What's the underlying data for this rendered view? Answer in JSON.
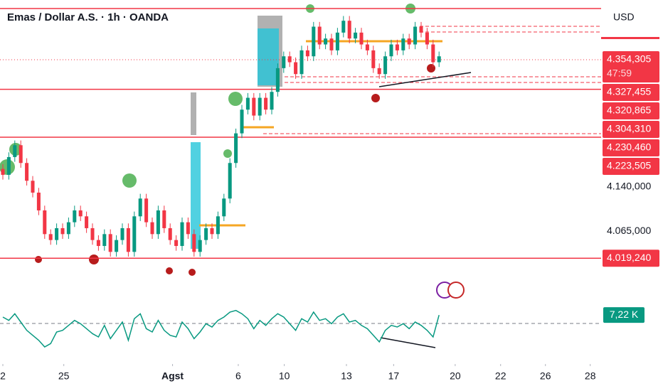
{
  "chart_data": {
    "type": "candlestick",
    "title": "Emas / Dollar A.S. · 1h · OANDA",
    "currency": "USD",
    "up_color": "#089981",
    "down_color": "#f23645",
    "ylim": [
      3.98,
      4.455
    ],
    "xlim": [
      0,
      100
    ],
    "xticks": [
      {
        "value": 0,
        "label": "2"
      },
      {
        "value": 10.2,
        "label": "25"
      },
      {
        "value": 28.4,
        "label": "Agst"
      },
      {
        "value": 39.4,
        "label": "6"
      },
      {
        "value": 47.1,
        "label": "10"
      },
      {
        "value": 57.5,
        "label": "13"
      },
      {
        "value": 65.4,
        "label": "17"
      },
      {
        "value": 75.7,
        "label": "20"
      },
      {
        "value": 83.3,
        "label": "22"
      },
      {
        "value": 90.8,
        "label": "26"
      },
      {
        "value": 98.3,
        "label": "28"
      }
    ],
    "open": [
      4.17,
      4.16,
      4.19,
      4.21,
      4.18,
      4.15,
      4.13,
      4.1,
      4.06,
      4.05,
      4.07,
      4.06,
      4.08,
      4.1,
      4.09,
      4.07,
      4.05,
      4.04,
      4.06,
      4.03,
      4.05,
      4.07,
      4.03,
      4.09,
      4.12,
      4.08,
      4.06,
      4.1,
      4.07,
      4.05,
      4.04,
      4.08,
      4.06,
      4.03,
      4.05,
      4.07,
      4.06,
      4.09,
      4.12,
      4.18,
      4.23,
      4.27,
      4.29,
      4.26,
      4.29,
      4.27,
      4.3,
      4.34,
      4.36,
      4.35,
      4.33,
      4.37,
      4.36,
      4.41,
      4.38,
      4.39,
      4.37,
      4.4,
      4.42,
      4.39,
      4.4,
      4.38,
      4.37,
      4.34,
      4.33,
      4.36,
      4.38,
      4.37,
      4.39,
      4.38,
      4.41,
      4.4,
      4.38,
      4.35
    ],
    "high": [
      4.178,
      4.198,
      4.218,
      4.218,
      4.188,
      4.158,
      4.138,
      4.108,
      4.068,
      4.078,
      4.078,
      4.088,
      4.108,
      4.108,
      4.098,
      4.078,
      4.058,
      4.068,
      4.068,
      4.058,
      4.078,
      4.078,
      4.098,
      4.128,
      4.128,
      4.088,
      4.108,
      4.108,
      4.078,
      4.058,
      4.088,
      4.088,
      4.068,
      4.058,
      4.078,
      4.078,
      4.098,
      4.128,
      4.188,
      4.238,
      4.278,
      4.298,
      4.298,
      4.298,
      4.298,
      4.308,
      4.348,
      4.368,
      4.368,
      4.358,
      4.378,
      4.378,
      4.418,
      4.418,
      4.398,
      4.398,
      4.408,
      4.428,
      4.428,
      4.408,
      4.408,
      4.388,
      4.378,
      4.348,
      4.368,
      4.388,
      4.388,
      4.398,
      4.398,
      4.418,
      4.418,
      4.408,
      4.388,
      4.368
    ],
    "low": [
      4.152,
      4.152,
      4.182,
      4.172,
      4.142,
      4.122,
      4.092,
      4.052,
      4.042,
      4.042,
      4.052,
      4.052,
      4.072,
      4.082,
      4.062,
      4.042,
      4.032,
      4.032,
      4.022,
      4.022,
      4.042,
      4.022,
      4.022,
      4.082,
      4.072,
      4.052,
      4.052,
      4.062,
      4.042,
      4.032,
      4.032,
      4.052,
      4.022,
      4.022,
      4.042,
      4.052,
      4.052,
      4.082,
      4.112,
      4.172,
      4.222,
      4.262,
      4.252,
      4.252,
      4.262,
      4.262,
      4.292,
      4.332,
      4.342,
      4.322,
      4.322,
      4.352,
      4.352,
      4.372,
      4.372,
      4.362,
      4.362,
      4.392,
      4.382,
      4.382,
      4.372,
      4.362,
      4.332,
      4.322,
      4.322,
      4.352,
      4.362,
      4.362,
      4.372,
      4.372,
      4.392,
      4.372,
      4.342,
      4.342
    ],
    "close": [
      4.16,
      4.19,
      4.21,
      4.18,
      4.15,
      4.13,
      4.1,
      4.06,
      4.05,
      4.07,
      4.06,
      4.08,
      4.1,
      4.09,
      4.07,
      4.05,
      4.04,
      4.06,
      4.03,
      4.05,
      4.07,
      4.03,
      4.09,
      4.12,
      4.08,
      4.06,
      4.1,
      4.07,
      4.05,
      4.04,
      4.08,
      4.06,
      4.03,
      4.05,
      4.07,
      4.06,
      4.09,
      4.12,
      4.18,
      4.23,
      4.27,
      4.29,
      4.26,
      4.29,
      4.27,
      4.3,
      4.34,
      4.36,
      4.35,
      4.33,
      4.37,
      4.36,
      4.41,
      4.38,
      4.39,
      4.37,
      4.4,
      4.42,
      4.39,
      4.4,
      4.38,
      4.37,
      4.34,
      4.33,
      4.36,
      4.38,
      4.37,
      4.39,
      4.38,
      4.41,
      4.4,
      4.38,
      4.35,
      4.36
    ],
    "levels": [
      4.4406,
      4.30431,
      4.22351,
      4.01924
    ],
    "price_labels": [
      {
        "value": 4.354305,
        "label": "4.354,305",
        "color": "#f23645"
      },
      {
        "value": 4.327455,
        "label": "4.327,455",
        "color": "#f23645"
      },
      {
        "value": 4.320865,
        "label": "4.320,865",
        "color": "#f23645"
      },
      {
        "value": 4.30431,
        "label": "4.304,310",
        "color": "#f23645"
      },
      {
        "value": 4.23046,
        "label": "4.230,460",
        "color": "#f23645"
      },
      {
        "value": 4.223505,
        "label": "4.223,505",
        "color": "#f23645"
      },
      {
        "value": 4.14,
        "label": "4.140,000"
      },
      {
        "value": 4.065,
        "label": "4.065,000"
      },
      {
        "value": 4.01924,
        "label": "4.019,240",
        "color": "#f23645"
      }
    ],
    "countdown": "47:59",
    "oscillator": {
      "color": "#089981",
      "ylim": [
        -15,
        15
      ],
      "values": [
        6,
        4,
        8,
        3,
        -2,
        -5,
        -8,
        -12,
        -10,
        -3,
        -2,
        1,
        4,
        2,
        -1,
        -4,
        -6,
        1,
        -7,
        -2,
        3,
        -8,
        5,
        8,
        -1,
        -3,
        4,
        -2,
        -5,
        -6,
        3,
        -1,
        -7,
        -3,
        2,
        0,
        4,
        6,
        9,
        10,
        8,
        5,
        -1,
        4,
        1,
        5,
        8,
        6,
        2,
        -2,
        5,
        3,
        9,
        4,
        5,
        2,
        6,
        8,
        3,
        4,
        1,
        -1,
        -5,
        -9,
        -2,
        1,
        0,
        2,
        -1,
        3,
        1,
        -2,
        -6,
        7.22
      ],
      "last_label": "7,22 K"
    }
  }
}
